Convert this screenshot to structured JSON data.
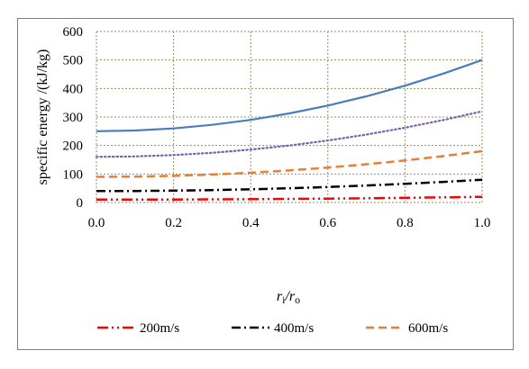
{
  "chart_data": {
    "type": "line",
    "ylabel": "specific energy /(kJ/kg)",
    "xlabel_main": "r",
    "xlabel_sub1": "i",
    "xlabel_sep": "/r",
    "xlabel_sub2": "o",
    "xlim": [
      0.0,
      1.0
    ],
    "ylim": [
      0,
      600
    ],
    "x_ticks": [
      "0.0",
      "0.2",
      "0.4",
      "0.6",
      "0.8",
      "1.0"
    ],
    "y_ticks": [
      "0",
      "100",
      "200",
      "300",
      "400",
      "500",
      "600"
    ],
    "grid": true,
    "legend_position": "bottom",
    "x": [
      0.0,
      0.1,
      0.2,
      0.3,
      0.4,
      0.5,
      0.6,
      0.7,
      0.8,
      0.9,
      1.0
    ],
    "series": [
      {
        "name": "200m/s",
        "color": "#ff0000",
        "style": "dash-dot-dot",
        "values": [
          10,
          10.1,
          10.4,
          10.9,
          11.6,
          12.5,
          13.6,
          14.9,
          16.4,
          18.1,
          20
        ]
      },
      {
        "name": "400m/s",
        "color": "#000000",
        "style": "dash-dot",
        "values": [
          40,
          40.4,
          41.6,
          43.6,
          46.4,
          50,
          54.4,
          59.6,
          65.6,
          72.4,
          80
        ]
      },
      {
        "name": "600m/s",
        "color": "#ed7d31",
        "style": "dash",
        "values": [
          90,
          90.9,
          93.6,
          98.1,
          104.4,
          112.5,
          122.4,
          134.1,
          147.6,
          162.9,
          180
        ]
      },
      {
        "name": "",
        "color": "#7b5fb0",
        "style": "dot",
        "values": [
          160,
          161.6,
          166.4,
          174.4,
          185.6,
          200,
          217.6,
          238.4,
          262.4,
          289.6,
          320
        ]
      },
      {
        "name": "",
        "color": "#4a7ebb",
        "style": "solid",
        "values": [
          250,
          252.5,
          260,
          272.5,
          290,
          312.5,
          340,
          372.5,
          410,
          452.5,
          500
        ]
      }
    ]
  }
}
